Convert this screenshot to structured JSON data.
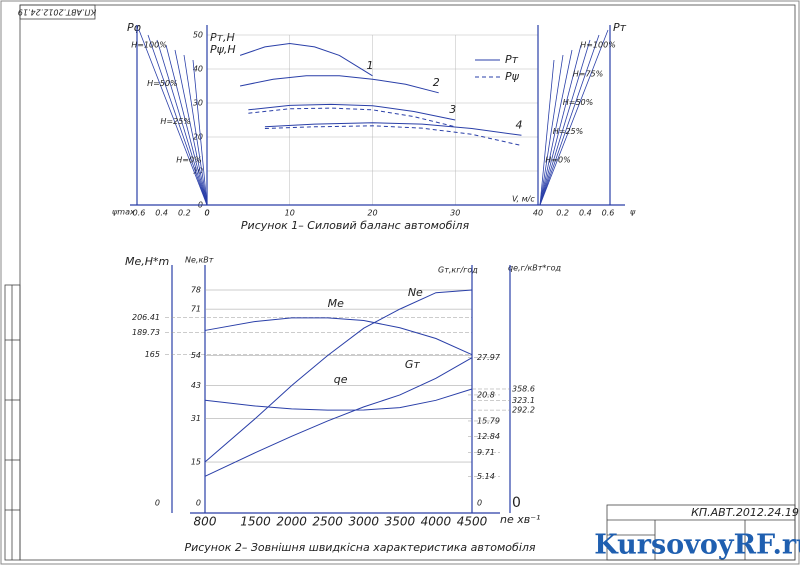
{
  "chart_data": [
    {
      "type": "line",
      "title": "Рисунок 1– Силовий баланс автомобіля",
      "y_labels": [
        "Pт,Н",
        "Pψ,Н"
      ],
      "x_label": "V, м/с",
      "xlim": [
        0,
        40
      ],
      "xticks": [
        0,
        10,
        20,
        30,
        40
      ],
      "ylim": [
        0,
        50
      ],
      "yticks": [
        0,
        10,
        20,
        30,
        40,
        50
      ],
      "grid": true,
      "color": "#2a3fa8",
      "legend": [
        {
          "name": "Pт",
          "dash": "solid"
        },
        {
          "name": "Pψ",
          "dash": "dashed"
        }
      ],
      "series": [
        {
          "name": "1",
          "dash": "solid",
          "x": [
            4,
            7,
            10,
            13,
            16,
            20
          ],
          "values": [
            44,
            46.5,
            47.5,
            46.5,
            44,
            38
          ]
        },
        {
          "name": "2",
          "dash": "solid",
          "x": [
            4,
            8,
            12,
            16,
            20,
            24,
            28
          ],
          "values": [
            35,
            37,
            38,
            38,
            37,
            35.5,
            33
          ]
        },
        {
          "name": "3",
          "dash": "solid",
          "x": [
            5,
            10,
            15,
            20,
            25,
            30
          ],
          "values": [
            28,
            29.3,
            29.6,
            29.2,
            27.5,
            25
          ]
        },
        {
          "name": "4",
          "dash": "solid",
          "x": [
            7,
            13,
            20,
            26,
            32,
            38
          ],
          "values": [
            23,
            23.8,
            24.2,
            23.8,
            22.5,
            20.5
          ]
        },
        {
          "name": null,
          "dash": "dashed",
          "x": [
            5,
            10,
            15,
            20,
            25,
            30
          ],
          "values": [
            27,
            28.3,
            28.5,
            28,
            26,
            23
          ]
        },
        {
          "name": null,
          "dash": "dashed",
          "x": [
            7,
            13,
            20,
            26,
            32,
            38
          ],
          "values": [
            22.5,
            23,
            23.3,
            22.6,
            20.8,
            17.5
          ]
        }
      ],
      "left_nomogram": {
        "title": "Pφ",
        "axis_label": "ψmax",
        "ticks": [
          0.6,
          0.4,
          0.2,
          0
        ],
        "lines": [
          "H=100%",
          "H=50%",
          "H=25%",
          "H=0%"
        ]
      },
      "right_nomogram": {
        "title": "Pт",
        "axis_label": "ψ",
        "ticks": [
          0.2,
          0.4,
          0.6
        ],
        "lines": [
          "H=100%",
          "H=75%",
          "H=50%",
          "H=25%",
          "H=0%"
        ]
      }
    },
    {
      "type": "line",
      "title": "Рисунок 2– Зовнішня швидкісна характеристика автомобіля",
      "x_label": "nе хв⁻¹",
      "x": [
        800,
        1500,
        2000,
        2500,
        3000,
        3500,
        4000,
        4500
      ],
      "xlim": [
        800,
        4500
      ],
      "xticks": [
        800,
        1500,
        2000,
        2500,
        3000,
        3500,
        4000,
        4500
      ],
      "y_label": "Mе,Н*m",
      "ylim": [
        0,
        237
      ],
      "yticks": [
        0,
        165,
        189.73,
        206.41
      ],
      "y2_label": "Nе,кВт",
      "y2lim": [
        0,
        78
      ],
      "y2ticks": [
        0,
        15,
        31,
        43,
        54,
        71,
        78
      ],
      "y3_label": "Gт,кг/год",
      "y3lim": [
        0,
        41
      ],
      "y3ticks": [
        0,
        5.14,
        9.71,
        12.84,
        15.79,
        20.8,
        27.97
      ],
      "y4_label": "qе,г/кВт*год",
      "y4lim": [
        0,
        670
      ],
      "y4ticks": [
        0,
        292.2,
        323.1,
        358.6
      ],
      "color": "#2a3fa8",
      "series": [
        {
          "name": "Mе",
          "axis": "y",
          "values": [
            192,
            202,
            206,
            206,
            203,
            195,
            183,
            165
          ]
        },
        {
          "name": "Nе",
          "axis": "y2",
          "values": [
            15,
            31,
            43,
            54,
            64,
            71,
            77,
            78
          ]
        },
        {
          "name": "qе",
          "axis": "y4",
          "values": [
            323.1,
            305,
            296,
            292.2,
            292.5,
            300,
            323,
            358.6
          ]
        },
        {
          "name": "Gт",
          "axis": "y3",
          "values": [
            5.14,
            9.71,
            12.84,
            15.79,
            18.5,
            20.8,
            24,
            27.97
          ]
        }
      ]
    }
  ],
  "frame": {
    "code_top": "КП.АВТ.2012.24.19",
    "stamp_code": "КП.АВТ.2012.24.19",
    "watermark": "KursovoyRF.ru"
  }
}
